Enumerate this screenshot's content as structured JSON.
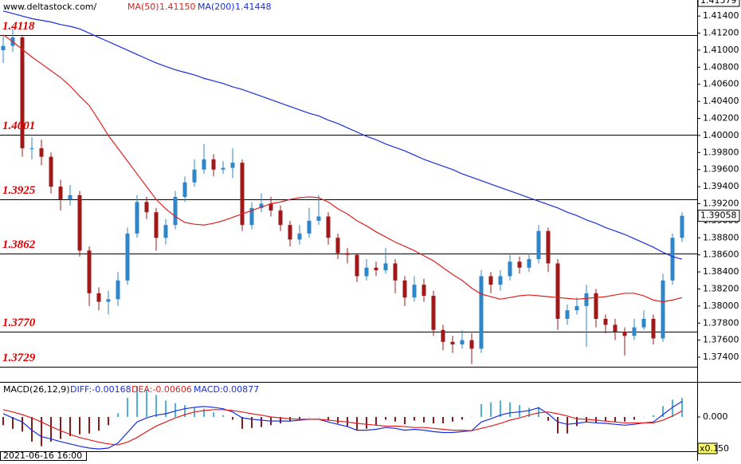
{
  "chart_data": {
    "type": "candlestick",
    "source": "www.deltastock.com/",
    "ylim": [
      1.3712,
      1.41579
    ],
    "yticks": [
      {
        "value": 1.414,
        "label": "1.41400"
      },
      {
        "value": 1.412,
        "label": "1.41200"
      },
      {
        "value": 1.41,
        "label": "1.41000"
      },
      {
        "value": 1.408,
        "label": "1.40800"
      },
      {
        "value": 1.406,
        "label": "1.40600"
      },
      {
        "value": 1.404,
        "label": "1.40400"
      },
      {
        "value": 1.402,
        "label": "1.40200"
      },
      {
        "value": 1.4,
        "label": "1.40000"
      },
      {
        "value": 1.398,
        "label": "1.39800"
      },
      {
        "value": 1.396,
        "label": "1.39600"
      },
      {
        "value": 1.394,
        "label": "1.39400"
      },
      {
        "value": 1.392,
        "label": "1.39200"
      },
      {
        "value": 1.39,
        "label": "1.39000"
      },
      {
        "value": 1.388,
        "label": "1.38800"
      },
      {
        "value": 1.386,
        "label": "1.38600"
      },
      {
        "value": 1.384,
        "label": "1.38400"
      },
      {
        "value": 1.382,
        "label": "1.38200"
      },
      {
        "value": 1.38,
        "label": "1.38000"
      },
      {
        "value": 1.378,
        "label": "1.37800"
      },
      {
        "value": 1.376,
        "label": "1.37600"
      },
      {
        "value": 1.374,
        "label": "1.37400"
      }
    ],
    "top_label": {
      "value": 1.41579,
      "label": "1.41579"
    },
    "last_price": {
      "value": 1.39058,
      "label": "1.39058"
    },
    "levels": [
      1.4118,
      1.4001,
      1.3925,
      1.3862,
      {
        "value": 1.377,
        "label": "1.3770"
      },
      1.3729
    ],
    "up_color": "#2f86c9",
    "down_color": "#a01818",
    "open": [
      1.41,
      1.4105,
      1.4115,
      1.3985,
      1.3985,
      1.3975,
      1.394,
      1.3925,
      1.393,
      1.3865,
      1.3815,
      1.3805,
      1.3808,
      1.383,
      1.3885,
      1.3922,
      1.391,
      1.388,
      1.3895,
      1.3928,
      1.3945,
      1.396,
      1.3972,
      1.396,
      1.3962,
      1.3968,
      1.3895,
      1.3915,
      1.392,
      1.3912,
      1.3895,
      1.3878,
      1.3885,
      1.39,
      1.3905,
      1.388,
      1.3862,
      1.386,
      1.3835,
      1.3845,
      1.3842,
      1.385,
      1.383,
      1.381,
      1.3825,
      1.3812,
      1.3772,
      1.3758,
      1.3755,
      1.376,
      1.375,
      1.3835,
      1.3825,
      1.3835,
      1.3852,
      1.3845,
      1.3855,
      1.3888,
      1.385,
      1.3785,
      1.3795,
      1.38,
      1.3815,
      1.3785,
      1.3778,
      1.377,
      1.3765,
      1.3775,
      1.3785,
      1.3762,
      1.383,
      1.388
    ],
    "high": [
      1.4118,
      1.4125,
      1.4118,
      1.3998,
      1.3995,
      1.398,
      1.3948,
      1.3942,
      1.3935,
      1.387,
      1.3822,
      1.3818,
      1.384,
      1.3892,
      1.393,
      1.3928,
      1.3915,
      1.3902,
      1.3935,
      1.3952,
      1.3972,
      1.399,
      1.3978,
      1.397,
      1.3985,
      1.3972,
      1.3922,
      1.3932,
      1.3928,
      1.3918,
      1.39,
      1.3895,
      1.3915,
      1.393,
      1.391,
      1.3885,
      1.3868,
      1.3862,
      1.3855,
      1.3852,
      1.3868,
      1.3855,
      1.3835,
      1.3835,
      1.3832,
      1.3818,
      1.3778,
      1.3765,
      1.3772,
      1.3768,
      1.3842,
      1.384,
      1.3842,
      1.386,
      1.3858,
      1.3862,
      1.3895,
      1.3892,
      1.3855,
      1.3802,
      1.381,
      1.3825,
      1.382,
      1.379,
      1.3785,
      1.3775,
      1.3785,
      1.3795,
      1.379,
      1.3838,
      1.3885,
      1.391
    ],
    "low": [
      1.4085,
      1.4098,
      1.3975,
      1.3972,
      1.3965,
      1.3932,
      1.3912,
      1.3918,
      1.3858,
      1.38,
      1.3795,
      1.379,
      1.38,
      1.3825,
      1.388,
      1.3902,
      1.3865,
      1.3872,
      1.389,
      1.3922,
      1.394,
      1.3955,
      1.3952,
      1.3955,
      1.395,
      1.3888,
      1.389,
      1.391,
      1.3905,
      1.3888,
      1.387,
      1.3872,
      1.388,
      1.3895,
      1.3872,
      1.3855,
      1.385,
      1.3828,
      1.383,
      1.3835,
      1.3838,
      1.3815,
      1.38,
      1.3805,
      1.3805,
      1.3765,
      1.3748,
      1.3745,
      1.375,
      1.3732,
      1.3745,
      1.3815,
      1.3818,
      1.383,
      1.3838,
      1.384,
      1.385,
      1.384,
      1.3772,
      1.3778,
      1.379,
      1.3752,
      1.3775,
      1.3768,
      1.376,
      1.3742,
      1.376,
      1.3772,
      1.3755,
      1.3758,
      1.3825,
      1.3875
    ],
    "close": [
      1.4105,
      1.4115,
      1.3985,
      1.3985,
      1.3975,
      1.394,
      1.3925,
      1.393,
      1.3865,
      1.3815,
      1.3805,
      1.3808,
      1.383,
      1.3885,
      1.3922,
      1.391,
      1.388,
      1.3895,
      1.3928,
      1.3945,
      1.396,
      1.3972,
      1.396,
      1.3962,
      1.3968,
      1.3895,
      1.3915,
      1.392,
      1.3912,
      1.3895,
      1.3878,
      1.3885,
      1.39,
      1.3905,
      1.388,
      1.3862,
      1.386,
      1.3835,
      1.3845,
      1.3842,
      1.385,
      1.383,
      1.381,
      1.3825,
      1.3812,
      1.3772,
      1.3758,
      1.3755,
      1.376,
      1.375,
      1.3835,
      1.3825,
      1.3835,
      1.3852,
      1.3845,
      1.3855,
      1.3888,
      1.385,
      1.3785,
      1.3795,
      1.38,
      1.3815,
      1.3785,
      1.3778,
      1.377,
      1.3765,
      1.3775,
      1.3785,
      1.3762,
      1.383,
      1.388,
      1.39058
    ],
    "series": [
      {
        "name": "MA(50)",
        "readout": "1.41150",
        "color": "#e02020",
        "values": [
          1.4118,
          1.411,
          1.4101,
          1.4092,
          1.4084,
          1.4076,
          1.4068,
          1.4058,
          1.4046,
          1.4035,
          1.4018,
          1.4,
          1.3985,
          1.397,
          1.3955,
          1.394,
          1.3925,
          1.3914,
          1.3905,
          1.3898,
          1.3896,
          1.3895,
          1.3897,
          1.39,
          1.3904,
          1.3908,
          1.3912,
          1.3916,
          1.392,
          1.3922,
          1.3925,
          1.3927,
          1.3928,
          1.3927,
          1.3922,
          1.3914,
          1.3908,
          1.39,
          1.3894,
          1.3887,
          1.3881,
          1.3875,
          1.387,
          1.3865,
          1.3859,
          1.3853,
          1.3845,
          1.3837,
          1.383,
          1.3821,
          1.3814,
          1.3811,
          1.3808,
          1.381,
          1.3812,
          1.3813,
          1.3812,
          1.3811,
          1.381,
          1.3809,
          1.3808,
          1.3809,
          1.381,
          1.3811,
          1.3813,
          1.3815,
          1.3815,
          1.3812,
          1.3807,
          1.3805,
          1.3807,
          1.381
        ]
      },
      {
        "name": "MA(200)",
        "readout": "1.41448",
        "color": "#1a2ee0",
        "values": [
          1.4146,
          1.4143,
          1.414,
          1.4137,
          1.4135,
          1.4133,
          1.413,
          1.4128,
          1.4125,
          1.412,
          1.4115,
          1.411,
          1.4105,
          1.41,
          1.4095,
          1.409,
          1.4085,
          1.4081,
          1.4077,
          1.4074,
          1.4071,
          1.4067,
          1.4064,
          1.4061,
          1.4057,
          1.4054,
          1.405,
          1.4046,
          1.4042,
          1.4038,
          1.4034,
          1.403,
          1.4026,
          1.4023,
          1.4018,
          1.4014,
          1.4009,
          1.4004,
          1.3999,
          1.3995,
          1.399,
          1.3986,
          1.3982,
          1.3977,
          1.3972,
          1.3968,
          1.3964,
          1.396,
          1.3955,
          1.3951,
          1.3947,
          1.3943,
          1.3939,
          1.3935,
          1.3931,
          1.3927,
          1.3923,
          1.3919,
          1.3915,
          1.391,
          1.3906,
          1.3901,
          1.3897,
          1.3892,
          1.3888,
          1.3884,
          1.3879,
          1.3874,
          1.3869,
          1.3863,
          1.3858,
          1.3855
        ]
      }
    ],
    "macd": {
      "title": "MACD(26,12,9)",
      "ylim": [
        -0.0075,
        0.0075
      ],
      "yticks": [
        {
          "value": 0,
          "label": "0.000"
        }
      ],
      "scale_note": "x0.1",
      "scale_value": "50",
      "hist_label": "MACD:0.00877",
      "hist_up_color": "#4fb3d9",
      "hist_down_color": "#8b1a1a",
      "hist": [
        -0.0018,
        -0.0026,
        -0.0032,
        -0.0054,
        -0.0064,
        -0.0054,
        -0.0048,
        -0.0042,
        -0.0038,
        -0.0036,
        -0.003,
        -0.0018,
        0.0008,
        0.0042,
        0.0068,
        0.006,
        0.0048,
        0.0036,
        0.003,
        0.0026,
        0.002,
        0.0018,
        0.001,
        0.0004,
        -0.0006,
        -0.0026,
        -0.0024,
        -0.0022,
        -0.0018,
        -0.0014,
        -0.001,
        -0.0004,
        0.0,
        0.0,
        -0.0008,
        -0.0014,
        -0.002,
        -0.003,
        -0.0026,
        -0.0018,
        -0.0006,
        -0.001,
        -0.0016,
        -0.0008,
        -0.0012,
        -0.0014,
        -0.0014,
        -0.001,
        -0.0006,
        0.0,
        0.0028,
        0.0032,
        0.0036,
        0.0032,
        0.0026,
        0.002,
        0.0022,
        -0.0008,
        -0.0036,
        -0.0036,
        -0.002,
        -0.0012,
        -0.0012,
        -0.001,
        -0.001,
        -0.001,
        -0.0006,
        0.0,
        0.0004,
        0.0024,
        0.0038,
        0.0042
      ],
      "series": [
        {
          "label": "DIFF:-0.00168",
          "color": "#1a2ee0",
          "values": [
            0.0007,
            -0.0002,
            -0.0011,
            -0.0029,
            -0.0043,
            -0.0048,
            -0.0054,
            -0.0059,
            -0.0064,
            -0.0068,
            -0.007,
            -0.0068,
            -0.0057,
            -0.0034,
            -0.0011,
            -0.0002,
            0.0004,
            0.0007,
            0.0013,
            0.0018,
            0.0021,
            0.0023,
            0.0021,
            0.0018,
            0.0011,
            -0.0002,
            -0.0005,
            -0.0007,
            -0.0009,
            -0.0009,
            -0.0009,
            -0.0007,
            -0.0005,
            -0.0005,
            -0.0011,
            -0.0016,
            -0.0021,
            -0.0029,
            -0.0029,
            -0.0027,
            -0.0023,
            -0.0025,
            -0.0029,
            -0.0027,
            -0.0029,
            -0.0032,
            -0.0034,
            -0.0034,
            -0.0032,
            -0.003,
            -0.0011,
            -0.0004,
            0.0004,
            0.0009,
            0.0011,
            0.0014,
            0.002,
            0.0007,
            -0.0011,
            -0.0016,
            -0.0014,
            -0.0011,
            -0.0013,
            -0.0014,
            -0.0016,
            -0.0018,
            -0.0016,
            -0.0013,
            -0.0011,
            0.0005,
            0.0021,
            0.0034
          ]
        },
        {
          "label": "DEA:-0.00606",
          "color": "#e02020",
          "values": [
            0.0016,
            0.0011,
            0.0005,
            -0.0002,
            -0.0011,
            -0.0021,
            -0.003,
            -0.0038,
            -0.0045,
            -0.005,
            -0.0055,
            -0.0059,
            -0.0061,
            -0.0055,
            -0.0045,
            -0.0032,
            -0.002,
            -0.0011,
            -0.0002,
            0.0005,
            0.0011,
            0.0014,
            0.0016,
            0.0016,
            0.0014,
            0.0011,
            0.0007,
            0.0004,
            0.0,
            -0.0002,
            -0.0004,
            -0.0005,
            -0.0005,
            -0.0005,
            -0.0007,
            -0.0009,
            -0.0011,
            -0.0014,
            -0.0016,
            -0.0018,
            -0.002,
            -0.002,
            -0.0021,
            -0.0023,
            -0.0023,
            -0.0025,
            -0.0027,
            -0.0029,
            -0.0029,
            -0.003,
            -0.0025,
            -0.002,
            -0.0014,
            -0.0007,
            -0.0002,
            0.0004,
            0.0009,
            0.0011,
            0.0007,
            0.0002,
            -0.0004,
            -0.0005,
            -0.0007,
            -0.0009,
            -0.0011,
            -0.0013,
            -0.0013,
            -0.0013,
            -0.0013,
            -0.0007,
            0.0002,
            0.0013
          ]
        }
      ]
    },
    "time_label": "2021-06-16 16:00"
  }
}
